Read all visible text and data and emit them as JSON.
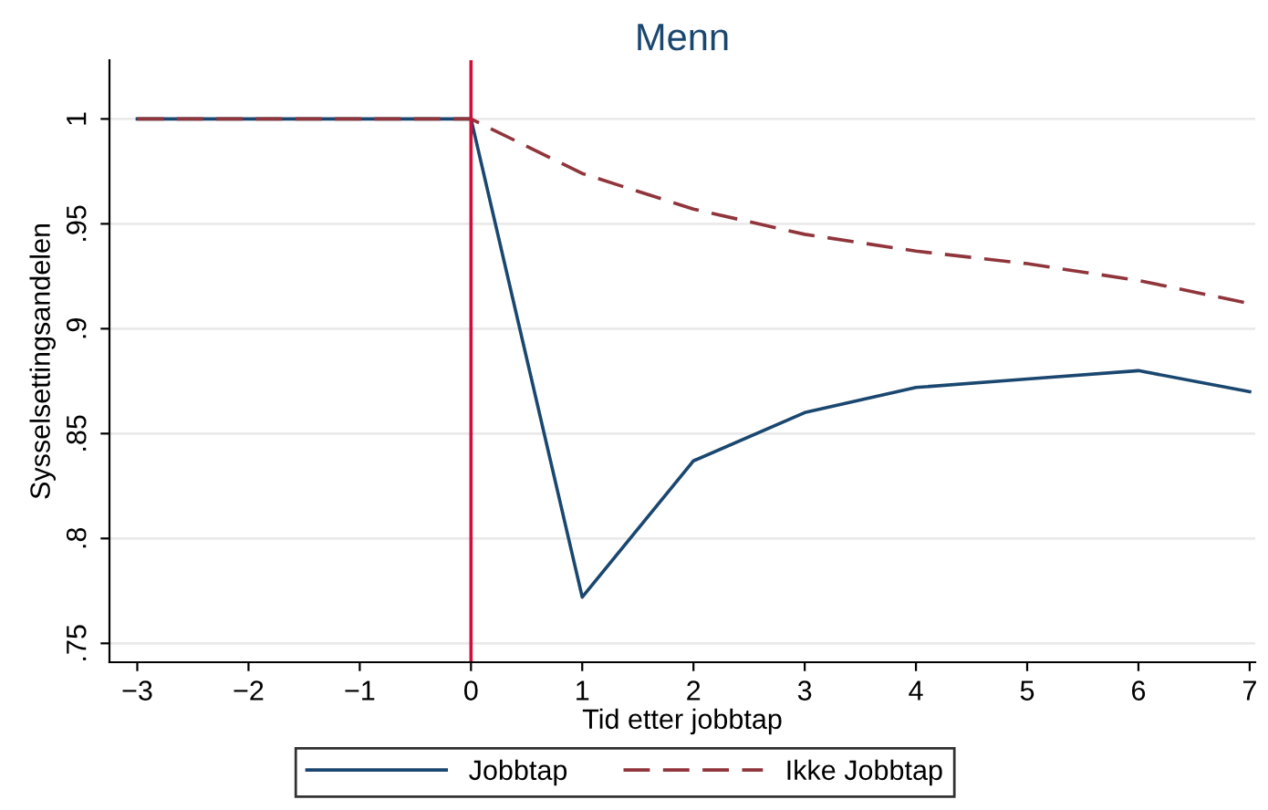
{
  "chart_data": {
    "type": "line",
    "title": "Menn",
    "xlabel": "Tid etter jobbtap",
    "ylabel": "Sysselsettingsandelen",
    "x": [
      -3,
      -2,
      -1,
      0,
      1,
      2,
      3,
      4,
      5,
      6,
      7
    ],
    "series": [
      {
        "name": "Jobbtap",
        "color": "#1a476f",
        "line_style": "solid",
        "values": [
          1,
          1,
          1,
          1,
          0.772,
          0.837,
          0.86,
          0.872,
          0.876,
          0.88,
          0.87
        ]
      },
      {
        "name": "Ikke Jobbtap",
        "color": "#90353b",
        "line_style": "dashed",
        "values": [
          1,
          1,
          1,
          1,
          0.974,
          0.957,
          0.945,
          0.937,
          0.931,
          0.923,
          0.912
        ]
      }
    ],
    "xlim": [
      -3.25,
      7.05
    ],
    "ylim": [
      0.741,
      1.028
    ],
    "xticks": [
      {
        "value": -3,
        "label": "−3"
      },
      {
        "value": -2,
        "label": "−2"
      },
      {
        "value": -1,
        "label": "−1"
      },
      0,
      1,
      2,
      3,
      4,
      5,
      6,
      7
    ],
    "yticks": [
      {
        "value": 0.75,
        "label": ".75"
      },
      {
        "value": 0.8,
        "label": ".8"
      },
      {
        "value": 0.85,
        "label": ".85"
      },
      {
        "value": 0.9,
        "label": ".9"
      },
      {
        "value": 0.95,
        "label": ".95"
      },
      1
    ],
    "ref_lines": [
      {
        "axis": "x",
        "value": 0,
        "color": "#d0103a"
      }
    ],
    "grid": "y",
    "legend": "bottom",
    "marker": "none"
  }
}
